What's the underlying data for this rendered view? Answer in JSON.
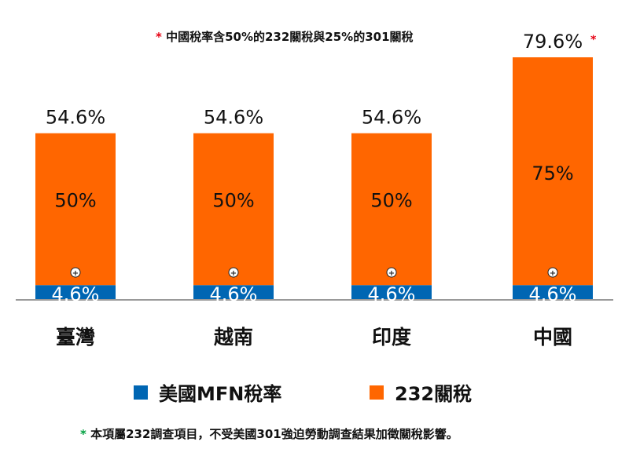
{
  "notes": {
    "top_star": "*",
    "top_text": "中國稅率含50%的232關稅與25%的301關稅",
    "bottom_star": "*",
    "bottom_text": "本項屬232調查項目，不受美國301強迫勞動調查結果加徵關稅影響。"
  },
  "legend": {
    "mfn_label": "美國MFN稅率",
    "s232_label": "232關稅"
  },
  "colors": {
    "mfn": "#0066b3",
    "s232": "#ff6600",
    "star_red": "#e60012",
    "star_green": "#00a040",
    "baseline": "#999999"
  },
  "chart_data": {
    "type": "bar",
    "stacked": true,
    "categories": [
      "臺灣",
      "越南",
      "印度",
      "中國"
    ],
    "series": [
      {
        "name": "美國MFN稅率",
        "values": [
          4.6,
          4.6,
          4.6,
          4.6
        ],
        "labels": [
          "4.6%",
          "4.6%",
          "4.6%",
          "4.6%"
        ]
      },
      {
        "name": "232關稅",
        "values": [
          50,
          50,
          50,
          75
        ],
        "labels": [
          "50%",
          "50%",
          "50%",
          "75%"
        ]
      }
    ],
    "totals": [
      54.6,
      54.6,
      54.6,
      79.6
    ],
    "total_labels": [
      "54.6%",
      "54.6%",
      "54.6%",
      "79.6%"
    ],
    "total_annotation": [
      "",
      "",
      "",
      "*"
    ],
    "plus_sign": "+",
    "ylim": [
      0,
      80
    ]
  }
}
